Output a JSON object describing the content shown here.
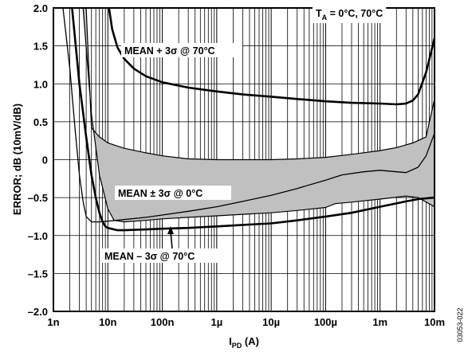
{
  "chart_data": {
    "type": "line",
    "x_scale": "log",
    "xlim": [
      1e-09,
      0.01
    ],
    "ylim": [
      -2.0,
      2.0
    ],
    "grid": true,
    "xlabel_main": "I",
    "xlabel_sub": "PD",
    "xlabel_unit": " (A)",
    "ylabel": "ERROR; dB (10mV/dB)",
    "x_tick_labels": [
      {
        "value": 1e-09,
        "label": "1n"
      },
      {
        "value": 1e-08,
        "label": "10n"
      },
      {
        "value": 1e-07,
        "label": "100n"
      },
      {
        "value": 1e-06,
        "label": "1µ"
      },
      {
        "value": 1e-05,
        "label": "10µ"
      },
      {
        "value": 0.0001,
        "label": "100µ"
      },
      {
        "value": 0.001,
        "label": "1m"
      },
      {
        "value": 0.01,
        "label": "10m"
      }
    ],
    "y_tick_labels": [
      {
        "value": 2.0,
        "label": "2.0"
      },
      {
        "value": 1.5,
        "label": "1.5"
      },
      {
        "value": 1.0,
        "label": "1.0"
      },
      {
        "value": 0.5,
        "label": "0.5"
      },
      {
        "value": 0,
        "label": "0"
      },
      {
        "value": -0.5,
        "label": "–0.5"
      },
      {
        "value": -1.0,
        "label": "–1.0"
      },
      {
        "value": -1.5,
        "label": "–1.5"
      },
      {
        "value": -2.0,
        "label": "–2.0"
      }
    ],
    "band": {
      "label": "MEAN ± 3σ @ 0°C",
      "upper": {
        "x": [
          4e-09,
          5e-09,
          7e-09,
          1e-08,
          2e-08,
          5e-08,
          1e-07,
          3e-07,
          1e-06,
          3e-06,
          1e-05,
          3e-05,
          0.0001,
          0.0003,
          0.001,
          0.002,
          0.004,
          0.007,
          0.01
        ],
        "y": [
          2.0,
          0.42,
          0.3,
          0.22,
          0.15,
          0.09,
          0.05,
          0.01,
          0.0,
          0.0,
          0.0,
          0.01,
          0.03,
          0.07,
          0.12,
          0.16,
          0.22,
          0.3,
          0.8
        ]
      },
      "lower": {
        "x": [
          3.5e-09,
          5e-09,
          7e-09,
          1e-08,
          1.3e-08,
          2e-08,
          5e-08,
          1e-07,
          3e-07,
          1e-06,
          3e-06,
          1e-05,
          3e-05,
          0.0001,
          0.00015,
          0.0003,
          0.001,
          0.003,
          0.005,
          0.01
        ],
        "y": [
          2.0,
          0.6,
          -0.2,
          -0.65,
          -0.8,
          -0.82,
          -0.8,
          -0.78,
          -0.76,
          -0.74,
          -0.72,
          -0.7,
          -0.67,
          -0.63,
          -0.58,
          -0.56,
          -0.52,
          -0.48,
          -0.5,
          -0.62
        ]
      },
      "fill": "#c0c0c0"
    },
    "series": [
      {
        "name": "MEAN + 3σ @ 70°C",
        "x": [
          1.05e-08,
          1.2e-08,
          1.5e-08,
          2e-08,
          3e-08,
          5e-08,
          1e-07,
          3e-07,
          1e-06,
          3e-06,
          1e-05,
          3e-05,
          0.0001,
          0.0003,
          0.001,
          0.002,
          0.003,
          0.004,
          0.005,
          0.007,
          0.01
        ],
        "y": [
          2.0,
          1.72,
          1.48,
          1.33,
          1.2,
          1.1,
          1.02,
          0.95,
          0.9,
          0.86,
          0.83,
          0.8,
          0.77,
          0.75,
          0.74,
          0.73,
          0.74,
          0.78,
          0.86,
          1.15,
          1.6
        ],
        "stroke_width": 2.6
      },
      {
        "name": "MEAN – 3σ @ 70°C",
        "x": [
          2.2e-09,
          3e-09,
          4e-09,
          5e-09,
          6e-09,
          7e-09,
          8e-09,
          9e-09,
          1e-08,
          1.5e-08,
          2e-08,
          5e-08,
          1e-07,
          3e-07,
          1e-06,
          3e-06,
          1e-05,
          3e-05,
          0.0001,
          0.0003,
          0.001,
          0.003,
          0.005,
          0.01
        ],
        "y": [
          2.0,
          1.0,
          0.3,
          -0.2,
          -0.5,
          -0.7,
          -0.82,
          -0.88,
          -0.9,
          -0.93,
          -0.93,
          -0.92,
          -0.91,
          -0.9,
          -0.88,
          -0.86,
          -0.84,
          -0.8,
          -0.75,
          -0.7,
          -0.62,
          -0.55,
          -0.52,
          -0.5
        ],
        "stroke_width": 2.6
      },
      {
        "name": "",
        "x": [
          1.5e-09,
          2e-09,
          2.5e-09,
          3e-09,
          3.5e-09,
          4e-09,
          5e-09,
          7e-09,
          1e-08,
          2e-08,
          5e-08,
          1e-07,
          3e-07,
          1e-06,
          3e-06,
          1e-05,
          3e-05,
          0.0001,
          0.0002,
          0.0005,
          0.001,
          0.002,
          0.003,
          0.005,
          0.007,
          0.01
        ],
        "y": [
          2.0,
          1.2,
          0.4,
          -0.2,
          -0.55,
          -0.75,
          -0.82,
          -0.82,
          -0.81,
          -0.79,
          -0.76,
          -0.73,
          -0.68,
          -0.62,
          -0.55,
          -0.47,
          -0.38,
          -0.27,
          -0.2,
          -0.16,
          -0.14,
          -0.16,
          -0.17,
          -0.1,
          0.05,
          0.35
        ],
        "stroke_width": 1.3
      }
    ],
    "annotations": {
      "temp_prefix": "T",
      "temp_sub": "A",
      "temp_suffix": " = 0°C, 70°C",
      "upper_label": "MEAN + 3σ @ 70°C",
      "band_label": "MEAN ± 3σ @ 0°C",
      "lower_label": "MEAN – 3σ @ 70°C"
    },
    "figure_id": "03053-022"
  }
}
